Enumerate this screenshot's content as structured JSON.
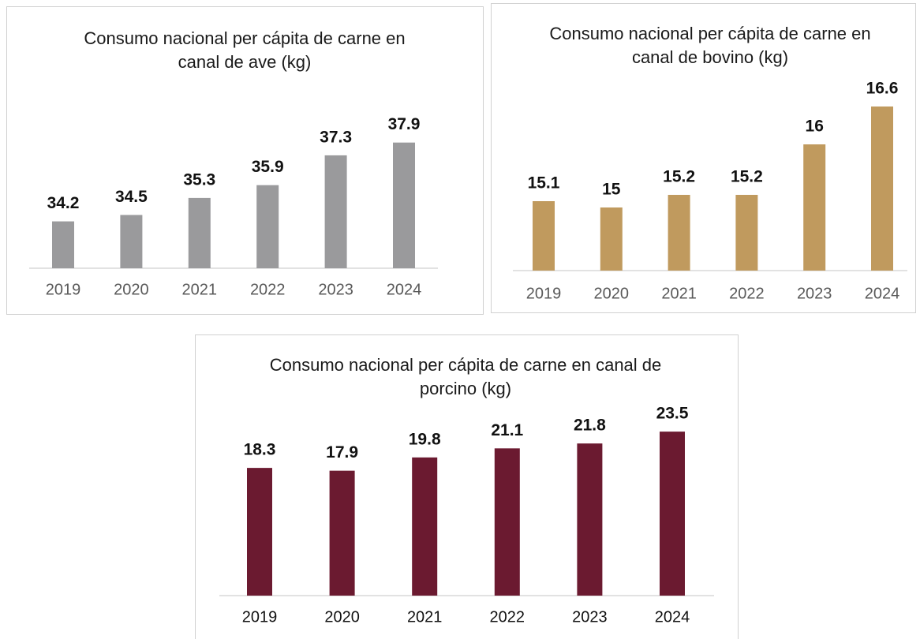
{
  "chart_data": [
    {
      "type": "bar",
      "title": "Consumo nacional per cápita de carne en canal de ave (kg)",
      "categories": [
        "2019",
        "2020",
        "2021",
        "2022",
        "2023",
        "2024"
      ],
      "values": [
        34.2,
        34.5,
        35.3,
        35.9,
        37.3,
        37.9
      ],
      "color": "#9a9a9c",
      "ylim": [
        32,
        39
      ]
    },
    {
      "type": "bar",
      "title": "Consumo nacional per cápita de carne en canal de bovino (kg)",
      "categories": [
        "2019",
        "2020",
        "2021",
        "2022",
        "2023",
        "2024"
      ],
      "values": [
        15.1,
        15,
        15.2,
        15.2,
        16,
        16.6
      ],
      "color": "#c09a5e",
      "ylim": [
        14,
        17
      ]
    },
    {
      "type": "bar",
      "title": "Consumo nacional per cápita de carne en canal de porcino (kg)",
      "categories": [
        "2019",
        "2020",
        "2021",
        "2022",
        "2023",
        "2024"
      ],
      "values": [
        18.3,
        17.9,
        19.8,
        21.1,
        21.8,
        23.5
      ],
      "color": "#6b1a30",
      "ylim": [
        0,
        26
      ]
    }
  ]
}
